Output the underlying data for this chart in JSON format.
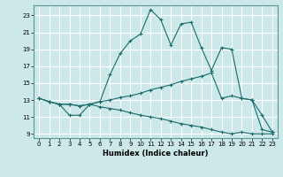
{
  "title": "",
  "xlabel": "Humidex (Indice chaleur)",
  "bg_color": "#cce8e8",
  "grid_color": "#ffffff",
  "line_color": "#1a6b6b",
  "xlim": [
    -0.5,
    23.5
  ],
  "ylim": [
    8.5,
    24.2
  ],
  "xticks": [
    0,
    1,
    2,
    3,
    4,
    5,
    6,
    7,
    8,
    9,
    10,
    11,
    12,
    13,
    14,
    15,
    16,
    17,
    18,
    19,
    20,
    21,
    22,
    23
  ],
  "yticks": [
    9,
    11,
    13,
    15,
    17,
    19,
    21,
    23
  ],
  "series": [
    {
      "x": [
        0,
        1,
        2,
        3,
        4,
        5,
        6,
        7,
        8,
        9,
        10,
        11,
        12,
        13,
        14,
        15,
        16,
        17,
        18,
        19,
        20,
        21,
        22,
        23
      ],
      "y": [
        13.2,
        12.8,
        12.5,
        11.2,
        11.2,
        12.5,
        12.8,
        16.0,
        18.5,
        20.0,
        20.8,
        23.7,
        22.5,
        19.5,
        22.0,
        22.2,
        19.2,
        16.5,
        19.2,
        19.0,
        13.2,
        13.0,
        11.2,
        9.2
      ]
    },
    {
      "x": [
        0,
        1,
        2,
        3,
        4,
        5,
        6,
        7,
        8,
        9,
        10,
        11,
        12,
        13,
        14,
        15,
        16,
        17,
        18,
        19,
        20,
        21,
        22,
        23
      ],
      "y": [
        13.2,
        12.8,
        12.5,
        12.5,
        12.3,
        12.5,
        12.8,
        13.0,
        13.3,
        13.5,
        13.8,
        14.2,
        14.5,
        14.8,
        15.2,
        15.5,
        15.8,
        16.2,
        13.2,
        13.5,
        13.2,
        13.0,
        9.5,
        9.2
      ]
    },
    {
      "x": [
        0,
        1,
        2,
        3,
        4,
        5,
        6,
        7,
        8,
        9,
        10,
        11,
        12,
        13,
        14,
        15,
        16,
        17,
        18,
        19,
        20,
        21,
        22,
        23
      ],
      "y": [
        13.2,
        12.8,
        12.5,
        12.5,
        12.3,
        12.5,
        12.2,
        12.0,
        11.8,
        11.5,
        11.2,
        11.0,
        10.8,
        10.5,
        10.2,
        10.0,
        9.8,
        9.5,
        9.2,
        9.0,
        9.2,
        9.0,
        9.0,
        9.0
      ]
    }
  ]
}
